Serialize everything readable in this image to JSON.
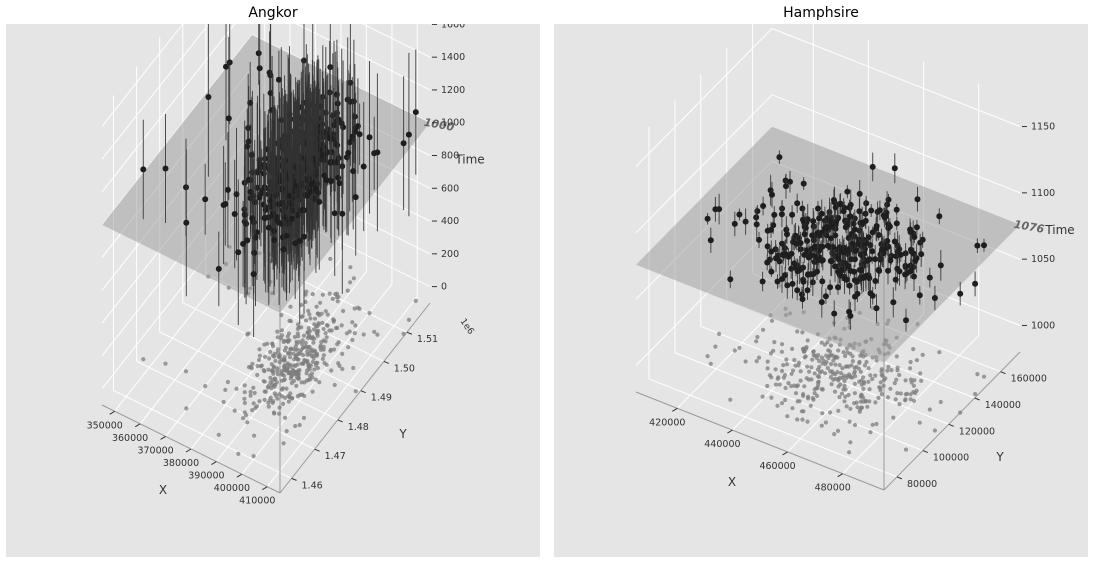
{
  "chart_data": [
    {
      "type": "scatter",
      "title": "Angkor",
      "xlabel": "X",
      "ylabel": "Y",
      "zlabel": "Time",
      "y_offset_label": "1e6",
      "plane_label": "1000",
      "plane_z": 1000,
      "xlim": [
        345000,
        415000
      ],
      "ylim": [
        1.455,
        1.52
      ],
      "zlim": [
        -100,
        1700
      ],
      "x_ticks": [
        "350000",
        "360000",
        "370000",
        "380000",
        "390000",
        "400000",
        "410000"
      ],
      "y_ticks": [
        "1.46",
        "1.47",
        "1.48",
        "1.49",
        "1.50",
        "1.51"
      ],
      "z_ticks": [
        "0",
        "200",
        "400",
        "600",
        "800",
        "1000",
        "1200",
        "1400",
        "1600"
      ],
      "cluster": {
        "x_center": 390000,
        "y_center": 1.49,
        "z_center": 1050,
        "z_error_mean": 350,
        "count": 420
      }
    },
    {
      "type": "scatter",
      "title": "Hamphsire",
      "xlabel": "X",
      "ylabel": "Y",
      "zlabel": "Time",
      "plane_label": "1076",
      "plane_z": 1076,
      "xlim": [
        405000,
        495000
      ],
      "ylim": [
        70000,
        175000
      ],
      "zlim": [
        980,
        1170
      ],
      "x_ticks": [
        "420000",
        "440000",
        "460000",
        "480000"
      ],
      "y_ticks": [
        "80000",
        "100000",
        "120000",
        "140000",
        "160000"
      ],
      "z_ticks": [
        "1000",
        "1050",
        "1100",
        "1150"
      ],
      "cluster": {
        "x_center": 455000,
        "y_center": 125000,
        "z_center": 1076,
        "z_error_mean": 8,
        "count": 360
      }
    }
  ]
}
